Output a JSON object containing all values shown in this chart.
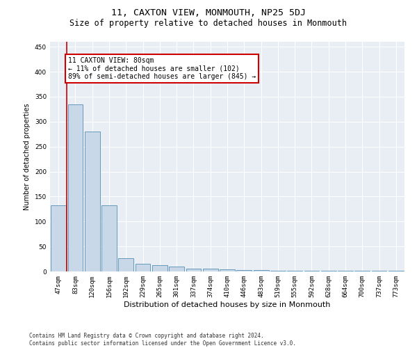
{
  "title": "11, CAXTON VIEW, MONMOUTH, NP25 5DJ",
  "subtitle": "Size of property relative to detached houses in Monmouth",
  "xlabel": "Distribution of detached houses by size in Monmouth",
  "ylabel": "Number of detached properties",
  "categories": [
    "47sqm",
    "83sqm",
    "120sqm",
    "156sqm",
    "192sqm",
    "229sqm",
    "265sqm",
    "301sqm",
    "337sqm",
    "374sqm",
    "410sqm",
    "446sqm",
    "483sqm",
    "519sqm",
    "555sqm",
    "592sqm",
    "628sqm",
    "664sqm",
    "700sqm",
    "737sqm",
    "773sqm"
  ],
  "values": [
    133,
    335,
    280,
    133,
    26,
    16,
    13,
    10,
    6,
    6,
    4,
    3,
    3,
    2,
    1,
    1,
    1,
    1,
    1,
    1,
    1
  ],
  "bar_color": "#c8d8e8",
  "bar_edge_color": "#6699bb",
  "reference_line_x": 0.5,
  "reference_line_color": "#cc0000",
  "annotation_text": "11 CAXTON VIEW: 80sqm\n← 11% of detached houses are smaller (102)\n89% of semi-detached houses are larger (845) →",
  "annotation_box_color": "#ffffff",
  "annotation_box_edge_color": "#cc0000",
  "ylim": [
    0,
    460
  ],
  "yticks": [
    0,
    50,
    100,
    150,
    200,
    250,
    300,
    350,
    400,
    450
  ],
  "background_color": "#e8eef4",
  "footer_text": "Contains HM Land Registry data © Crown copyright and database right 2024.\nContains public sector information licensed under the Open Government Licence v3.0.",
  "title_fontsize": 9.5,
  "subtitle_fontsize": 8.5,
  "xlabel_fontsize": 8,
  "ylabel_fontsize": 7,
  "tick_fontsize": 6.5,
  "footer_fontsize": 5.5,
  "annotation_fontsize": 7
}
